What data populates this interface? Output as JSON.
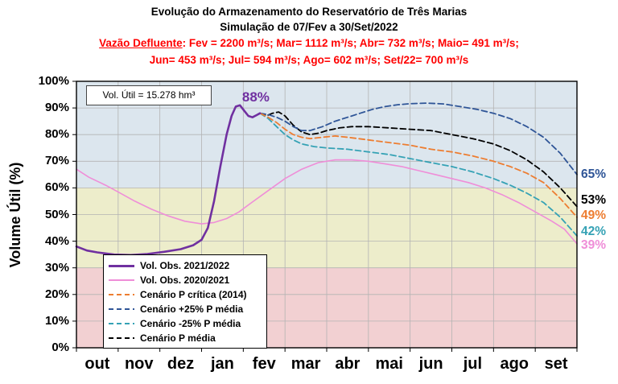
{
  "header": {
    "title_line1": "Evolução do Armazenamento do Reservatório de Três Marias",
    "title_line2": "Simulação de 07/Fev a 30/Set/2022",
    "outflow_label": "Vazão Defluente",
    "outflow_values1": ": Fev = 2200 m³/s;  Mar= 1112 m³/s; Abr= 732 m³/s; Maio= 491 m³/s;",
    "outflow_line2": "Jun= 453 m³/s; Jul= 594 m³/s; Ago= 602 m³/s; Set/22= 700 m³/s"
  },
  "chart_data": {
    "type": "line",
    "title": "Evolução do Armazenamento do Reservatório de Três Marias",
    "subtitle": "Simulação de 07/Fev a 30/Set/2022",
    "ylabel": "Volume Útil (%)",
    "ylim": [
      0,
      100
    ],
    "useful_volume_label": "Vol. Útil  = 15.278 hm³",
    "yticks": [
      "0%",
      "10%",
      "20%",
      "30%",
      "40%",
      "50%",
      "60%",
      "70%",
      "80%",
      "90%",
      "100%"
    ],
    "x_months": [
      "out",
      "nov",
      "dez",
      "jan",
      "fev",
      "mar",
      "abr",
      "mai",
      "jun",
      "jul",
      "ago",
      "set"
    ],
    "grid_color": "#b3b3b3",
    "legend_position": "bottom-left-inside",
    "bands": [
      {
        "from": 60,
        "to": 100,
        "color": "#dce6ee"
      },
      {
        "from": 30,
        "to": 60,
        "color": "#ededcb"
      },
      {
        "from": 0,
        "to": 30,
        "color": "#f2d0d2"
      }
    ],
    "annotations": {
      "peak": {
        "text": "88%",
        "color": "#7030a0",
        "month_x": 4.3,
        "value": 94
      }
    },
    "series": [
      {
        "id": "obs-2021-2022",
        "name": "Vol. Obs. 2021/2022",
        "color": "#7030a0",
        "dashed": false,
        "width": 2.6,
        "end_label": null,
        "points": [
          [
            0,
            38
          ],
          [
            0.25,
            36.5
          ],
          [
            0.5,
            35.8
          ],
          [
            0.9,
            35
          ],
          [
            1.3,
            34.8
          ],
          [
            1.7,
            35.2
          ],
          [
            2.1,
            36
          ],
          [
            2.5,
            37
          ],
          [
            2.8,
            38.5
          ],
          [
            3.0,
            40.5
          ],
          [
            3.15,
            45
          ],
          [
            3.3,
            55
          ],
          [
            3.45,
            68
          ],
          [
            3.6,
            80
          ],
          [
            3.72,
            87
          ],
          [
            3.82,
            90.5
          ],
          [
            3.92,
            91
          ],
          [
            4.02,
            89
          ],
          [
            4.12,
            87
          ],
          [
            4.22,
            86.5
          ],
          [
            4.32,
            87.3
          ],
          [
            4.4,
            88
          ]
        ]
      },
      {
        "id": "obs-2020-2021",
        "name": "Vol. Obs. 2020/2021",
        "color": "#ef8ed8",
        "dashed": false,
        "width": 1.6,
        "end_label": {
          "text": "39%",
          "dy": 2
        },
        "points": [
          [
            0,
            67
          ],
          [
            0.3,
            64
          ],
          [
            0.7,
            61
          ],
          [
            1.0,
            58.5
          ],
          [
            1.4,
            55
          ],
          [
            1.8,
            52
          ],
          [
            2.2,
            49.5
          ],
          [
            2.6,
            47.5
          ],
          [
            3.0,
            46.5
          ],
          [
            3.3,
            47
          ],
          [
            3.6,
            48.5
          ],
          [
            3.9,
            51
          ],
          [
            4.2,
            54.5
          ],
          [
            4.6,
            59
          ],
          [
            5.0,
            63.5
          ],
          [
            5.4,
            67
          ],
          [
            5.8,
            69.5
          ],
          [
            6.2,
            70.5
          ],
          [
            6.6,
            70.5
          ],
          [
            7.0,
            70
          ],
          [
            7.4,
            69
          ],
          [
            7.8,
            68
          ],
          [
            8.2,
            66.5
          ],
          [
            8.6,
            65
          ],
          [
            9.0,
            63.5
          ],
          [
            9.4,
            62
          ],
          [
            9.8,
            60
          ],
          [
            10.2,
            57.5
          ],
          [
            10.6,
            54.5
          ],
          [
            11.0,
            51
          ],
          [
            11.4,
            47.5
          ],
          [
            11.7,
            44.5
          ],
          [
            12.0,
            39
          ]
        ]
      },
      {
        "id": "cenario-p-critica",
        "name": "Cenário P crítica (2014)",
        "color": "#ed7d31",
        "dashed": true,
        "width": 1.8,
        "end_label": {
          "text": "49%",
          "dy": -2
        },
        "points": [
          [
            4.4,
            88
          ],
          [
            4.6,
            86.5
          ],
          [
            4.8,
            84.5
          ],
          [
            5.0,
            82
          ],
          [
            5.2,
            80
          ],
          [
            5.4,
            79
          ],
          [
            5.6,
            78.5
          ],
          [
            5.9,
            79
          ],
          [
            6.2,
            79.5
          ],
          [
            6.5,
            79
          ],
          [
            7.0,
            78
          ],
          [
            7.5,
            77
          ],
          [
            8.0,
            76
          ],
          [
            8.5,
            74.5
          ],
          [
            9.0,
            73.5
          ],
          [
            9.5,
            72
          ],
          [
            10.0,
            70
          ],
          [
            10.4,
            68
          ],
          [
            10.8,
            65.5
          ],
          [
            11.2,
            62
          ],
          [
            11.6,
            56
          ],
          [
            12.0,
            49
          ]
        ]
      },
      {
        "id": "cenario-mais25-p-media",
        "name": "Cenário +25% P média",
        "color": "#2f5597",
        "dashed": true,
        "width": 1.8,
        "end_label": {
          "text": "65%",
          "dy": 0
        },
        "points": [
          [
            4.4,
            88
          ],
          [
            4.6,
            87.5
          ],
          [
            4.8,
            86.5
          ],
          [
            5.0,
            85
          ],
          [
            5.2,
            83
          ],
          [
            5.4,
            81.5
          ],
          [
            5.6,
            81.5
          ],
          [
            5.9,
            83
          ],
          [
            6.2,
            85
          ],
          [
            6.5,
            86.5
          ],
          [
            6.8,
            88
          ],
          [
            7.1,
            89.5
          ],
          [
            7.4,
            90.5
          ],
          [
            7.7,
            91.2
          ],
          [
            8.0,
            91.6
          ],
          [
            8.4,
            91.8
          ],
          [
            8.8,
            91.5
          ],
          [
            9.2,
            90.5
          ],
          [
            9.6,
            89.5
          ],
          [
            10.0,
            88
          ],
          [
            10.4,
            86
          ],
          [
            10.8,
            83
          ],
          [
            11.2,
            79
          ],
          [
            11.6,
            73
          ],
          [
            12.0,
            65
          ]
        ]
      },
      {
        "id": "cenario-menos25-p-media",
        "name": "Cenário -25% P média",
        "color": "#35a2b5",
        "dashed": true,
        "width": 1.8,
        "end_label": {
          "text": "42%",
          "dy": -5
        },
        "points": [
          [
            4.4,
            88
          ],
          [
            4.6,
            86
          ],
          [
            4.8,
            83
          ],
          [
            5.0,
            80
          ],
          [
            5.2,
            78
          ],
          [
            5.4,
            76.5
          ],
          [
            5.7,
            75.5
          ],
          [
            6.0,
            75
          ],
          [
            6.5,
            74.5
          ],
          [
            7.0,
            73.5
          ],
          [
            7.5,
            72.5
          ],
          [
            8.0,
            71
          ],
          [
            8.5,
            69.5
          ],
          [
            9.0,
            68
          ],
          [
            9.5,
            66
          ],
          [
            10.0,
            63.5
          ],
          [
            10.4,
            61
          ],
          [
            10.8,
            58
          ],
          [
            11.2,
            54.5
          ],
          [
            11.6,
            49
          ],
          [
            12.0,
            42
          ]
        ]
      },
      {
        "id": "cenario-p-media",
        "name": "Cenário P média",
        "color": "#000000",
        "dashed": true,
        "width": 1.8,
        "end_label": {
          "text": "53%",
          "dy": -8
        },
        "points": [
          [
            4.4,
            88
          ],
          [
            4.55,
            87
          ],
          [
            4.7,
            88
          ],
          [
            4.85,
            88.5
          ],
          [
            5.0,
            87
          ],
          [
            5.2,
            83.5
          ],
          [
            5.4,
            81
          ],
          [
            5.6,
            80
          ],
          [
            5.8,
            80.5
          ],
          [
            6.0,
            81.5
          ],
          [
            6.3,
            82.5
          ],
          [
            6.6,
            83
          ],
          [
            7.0,
            83
          ],
          [
            7.5,
            82.5
          ],
          [
            8.0,
            82
          ],
          [
            8.5,
            81.5
          ],
          [
            9.0,
            80
          ],
          [
            9.5,
            78.5
          ],
          [
            10.0,
            76.5
          ],
          [
            10.4,
            74
          ],
          [
            10.8,
            70.5
          ],
          [
            11.2,
            66
          ],
          [
            11.6,
            60
          ],
          [
            12.0,
            53
          ]
        ]
      }
    ]
  }
}
